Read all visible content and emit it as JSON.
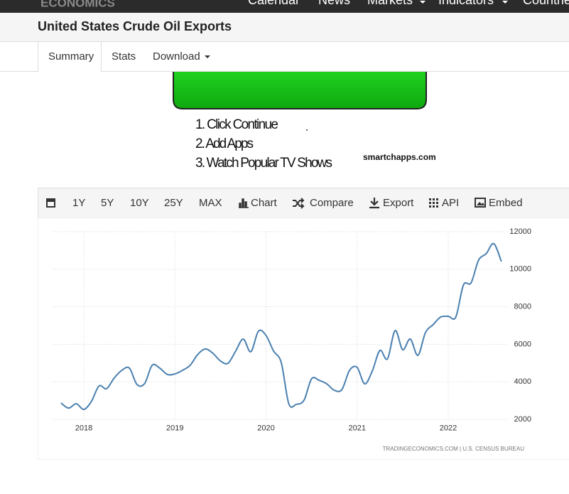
{
  "nav": {
    "logo": "ECONOMICS",
    "items": [
      "Calendar",
      "News",
      "Markets",
      "Indicators",
      "Countries"
    ]
  },
  "header": {
    "title": "United States Crude Oil Exports"
  },
  "tabs": [
    "Summary",
    "Stats",
    "Download"
  ],
  "ad": {
    "steps": [
      "1. Click Continue",
      "2. Add Apps",
      "3. Watch Popular TV Shows"
    ],
    "site": "smartchapps.com"
  },
  "toolbar": [
    "1Y",
    "5Y",
    "10Y",
    "25Y",
    "MAX",
    "Chart",
    "Compare",
    "Export",
    "API",
    "Embed"
  ],
  "chart_data": {
    "type": "line",
    "source": "TRADINGECONOMICS.COM  |  U.S. CENSUS BUREAU",
    "x": [
      2017.75,
      2017.833,
      2017.917,
      2018,
      2018.083,
      2018.167,
      2018.25,
      2018.333,
      2018.417,
      2018.5,
      2018.583,
      2018.667,
      2018.75,
      2018.833,
      2018.917,
      2019,
      2019.083,
      2019.167,
      2019.25,
      2019.333,
      2019.417,
      2019.5,
      2019.583,
      2019.667,
      2019.75,
      2019.833,
      2019.917,
      2020,
      2020.083,
      2020.167,
      2020.25,
      2020.333,
      2020.417,
      2020.5,
      2020.583,
      2020.667,
      2020.75,
      2020.833,
      2020.917,
      2021,
      2021.083,
      2021.167,
      2021.25,
      2021.333,
      2021.417,
      2021.5,
      2021.583,
      2021.667,
      2021.75,
      2021.833,
      2021.917,
      2022,
      2022.083,
      2022.167,
      2022.25,
      2022.333,
      2022.417,
      2022.5,
      2022.583
    ],
    "series": [
      {
        "name": "Crude Oil Exports",
        "color": "#4a80b0",
        "values": [
          2870,
          2600,
          2830,
          2530,
          2950,
          3780,
          3630,
          4200,
          4610,
          4730,
          3860,
          3900,
          4880,
          4730,
          4390,
          4420,
          4610,
          4880,
          5450,
          5750,
          5520,
          5110,
          4990,
          5640,
          6280,
          5600,
          6700,
          6470,
          5640,
          5030,
          2830,
          2800,
          3020,
          4160,
          4080,
          3890,
          3550,
          3590,
          4610,
          4770,
          3890,
          4580,
          5670,
          5220,
          6730,
          5710,
          6280,
          5410,
          6620,
          7040,
          7450,
          7490,
          7450,
          9160,
          9270,
          10480,
          10830,
          11360,
          10410
        ]
      }
    ],
    "xlim": [
      2017.665,
      2022.655
    ],
    "xticks": [
      2018,
      2019,
      2020,
      2021,
      2022
    ],
    "ylim": [
      1900,
      12300
    ],
    "yticks": [
      2000,
      4000,
      6000,
      8000,
      10000,
      12000
    ],
    "grid": true
  }
}
